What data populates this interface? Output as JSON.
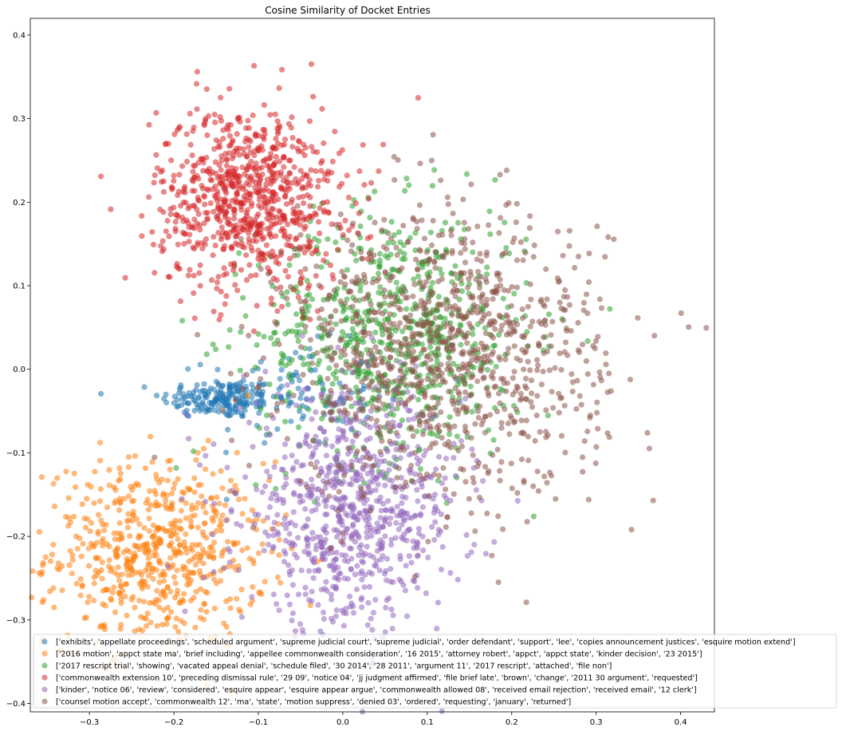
{
  "chart_data": {
    "type": "scatter",
    "title": "Cosine Similarity of Docket Entries",
    "xlabel": "",
    "ylabel": "",
    "xlim": [
      -0.37,
      0.44
    ],
    "ylim": [
      -0.41,
      0.42
    ],
    "x_ticks": [
      -0.3,
      -0.2,
      -0.1,
      0.0,
      0.1,
      0.2,
      0.3,
      0.4
    ],
    "x_tick_labels": [
      "−0.3",
      "−0.2",
      "−0.1",
      "0.0",
      "0.1",
      "0.2",
      "0.3",
      "0.4"
    ],
    "y_ticks": [
      -0.4,
      -0.3,
      -0.2,
      -0.1,
      0.0,
      0.1,
      0.2,
      0.3,
      0.4
    ],
    "y_tick_labels": [
      "−0.4",
      "−0.3",
      "−0.2",
      "−0.1",
      "0.0",
      "0.1",
      "0.2",
      "0.3",
      "0.4"
    ],
    "grid": false,
    "legend_position": "bottom-left",
    "series": [
      {
        "name": "['exhibits', 'appellate proceedings', 'scheduled argument', 'supreme judicial court', 'supreme judicial', 'order defendant', 'support', 'lee', 'copies announcement justices', 'esquire motion extend']",
        "color": "#1f77b4",
        "clusters": [
          {
            "center": [
              -0.145,
              -0.035
            ],
            "spread": [
              0.035,
              0.012
            ],
            "count": 170
          },
          {
            "center": [
              -0.06,
              -0.03
            ],
            "spread": [
              0.05,
              0.03
            ],
            "count": 110
          }
        ]
      },
      {
        "name": "['2016 motion', 'appct state ma', 'brief including', 'appellee commonwealth consideration', '16 2015', 'attorney robert', 'appct', 'appct state', 'kinder decision', '23 2015']",
        "color": "#ff7f0e",
        "clusters": [
          {
            "center": [
              -0.22,
              -0.22
            ],
            "spread": [
              0.065,
              0.055
            ],
            "count": 640
          }
        ]
      },
      {
        "name": "['2017 rescript trial', 'showing', 'vacated appeal denial', 'schedule filed', '30 2014', '28 2011', 'argument 11', '2017 rescript', 'attached', 'file non']",
        "color": "#2ca02c",
        "clusters": [
          {
            "center": [
              0.06,
              0.04
            ],
            "spread": [
              0.08,
              0.075
            ],
            "count": 700
          }
        ]
      },
      {
        "name": "['commonwealth extension 10', 'preceding dismissal rule', '29 09', 'notice 04', 'jj judgment affirmed', 'file brief late', 'brown', 'change', '2011 30 argument', 'requested']",
        "color": "#d62728",
        "clusters": [
          {
            "center": [
              -0.11,
              0.205
            ],
            "spread": [
              0.055,
              0.055
            ],
            "count": 820
          }
        ]
      },
      {
        "name": "['kinder', 'notice 06', 'review', 'considered', 'esquire appear', 'esquire appear argue', 'commonwealth allowed 08', 'received email rejection', 'received email', '12 clerk']",
        "color": "#9467bd",
        "clusters": [
          {
            "center": [
              0.01,
              -0.17
            ],
            "spread": [
              0.065,
              0.07
            ],
            "count": 820
          }
        ]
      },
      {
        "name": "['counsel motion accept', 'commonwealth 12', 'ma', 'state', 'motion suppress', 'denied 03', 'ordered', 'requesting', 'january', 'returned']",
        "color": "#8c564b",
        "clusters": [
          {
            "center": [
              0.12,
              0.02
            ],
            "spread": [
              0.095,
              0.085
            ],
            "count": 1050
          }
        ]
      }
    ]
  }
}
